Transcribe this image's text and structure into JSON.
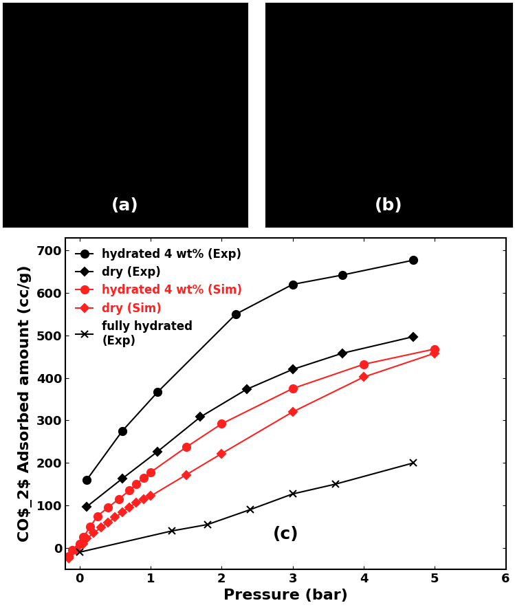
{
  "chart_data": [
    {
      "type": "image",
      "title": "(a)"
    },
    {
      "type": "image",
      "title": "(b)"
    },
    {
      "type": "line",
      "annotations": [
        "(c)"
      ],
      "x_label": "Pressure (bar)",
      "y_label": "CO$_2$ Adsorbed amount (cc/g)",
      "xlim": [
        -0.2,
        6
      ],
      "xticks": [
        0,
        1,
        2,
        3,
        4,
        5,
        6
      ],
      "ylim": [
        -50,
        730
      ],
      "yticks": [
        0,
        100,
        200,
        300,
        400,
        500,
        600,
        700
      ],
      "legend": "upper left",
      "series": [
        {
          "name": "hydrated 4 wt% (Exp)",
          "color": "#000000",
          "marker": "o",
          "line_style": "solid",
          "x": [
            0.1,
            0.6,
            1.1,
            2.2,
            3.0,
            3.7,
            4.7
          ],
          "values": [
            160,
            275,
            367,
            550,
            620,
            642,
            677
          ]
        },
        {
          "name": "dry (Exp)",
          "color": "#000000",
          "marker": "D",
          "line_style": "solid",
          "x": [
            0.1,
            0.6,
            1.1,
            1.7,
            2.35,
            3.0,
            3.7,
            4.7
          ],
          "values": [
            97,
            163,
            227,
            308,
            373,
            420,
            458,
            497
          ]
        },
        {
          "name": "hydrated 4 wt% (Sim)",
          "color": "#ff2020",
          "marker": "o",
          "line_style": "solid",
          "x": [
            -0.15,
            -0.1,
            0.0,
            0.05,
            0.15,
            0.25,
            0.4,
            0.55,
            0.7,
            0.8,
            0.9,
            1.0,
            1.5,
            2.0,
            3.0,
            4.0,
            5.0
          ],
          "values": [
            -20,
            -5,
            10,
            25,
            50,
            75,
            95,
            115,
            135,
            150,
            165,
            178,
            237,
            292,
            375,
            432,
            468
          ]
        },
        {
          "name": "dry (Sim)",
          "color": "#ff2020",
          "marker": "D",
          "line_style": "solid",
          "x": [
            -0.15,
            -0.05,
            0.05,
            0.1,
            0.2,
            0.3,
            0.4,
            0.5,
            0.6,
            0.7,
            0.8,
            0.9,
            1.0,
            1.5,
            2.0,
            3.0,
            4.0,
            5.0
          ],
          "values": [
            -25,
            -5,
            10,
            22,
            35,
            48,
            60,
            72,
            84,
            96,
            107,
            115,
            122,
            172,
            222,
            320,
            402,
            458
          ]
        },
        {
          "name": "fully hydrated\n(Exp)",
          "color": "#000000",
          "marker": "x",
          "line_style": "solid",
          "x": [
            0.0,
            1.3,
            1.8,
            2.4,
            3.0,
            3.6,
            4.7
          ],
          "values": [
            -10,
            40,
            55,
            90,
            127,
            150,
            200
          ]
        }
      ]
    }
  ]
}
